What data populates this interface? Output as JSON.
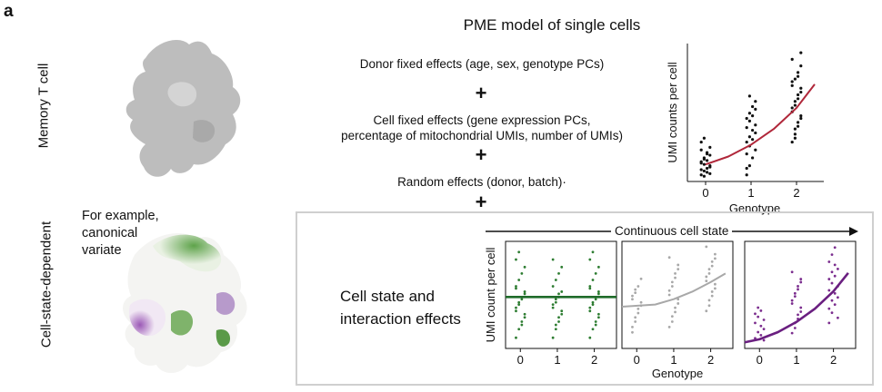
{
  "panel_letter": "a",
  "title": "PME model of single cells",
  "labels": {
    "memory_t_cell": "Memory T cell",
    "cell_state_dependent": "Cell-state-dependent",
    "example_line1": "For example,",
    "example_line2": "canonical",
    "example_line3": "variate"
  },
  "effects": {
    "donor": "Donor fixed effects (age, sex, genotype PCs)",
    "cell_line1": "Cell fixed effects (gene expression PCs,",
    "cell_line2": "percentage of mitochondrial UMIs, number of UMIs)",
    "random": "Random effects (donor, batch)·",
    "plus": "+"
  },
  "continuous_label": "Continuous cell state",
  "interaction_line1": "Cell state and",
  "interaction_line2": "interaction effects",
  "colors": {
    "umap_gray": "#bdbdbd",
    "green": "#2e7d32",
    "purple": "#7b2d8e",
    "red_curve": "#b0273a",
    "gray_points": "#b0b0b0",
    "box_border": "#cfcfcf"
  },
  "chart_data": [
    {
      "type": "scatter",
      "ylabel": "UMI counts per cell",
      "xlabel": "Genotype",
      "x_ticks": [
        "0",
        "1",
        "2"
      ],
      "point_color": "#111111",
      "curve_color": "#b0273a",
      "groups": [
        {
          "x": 0,
          "y": [
            0.5,
            0.8,
            1.0,
            1.2,
            1.5,
            1.8,
            2.2,
            0.6,
            0.9,
            1.3,
            1.6,
            2.0,
            2.4,
            0.4,
            0.7,
            1.1,
            1.4,
            1.7,
            2.1,
            2.6,
            3.0,
            3.3
          ]
        },
        {
          "x": 1,
          "y": [
            0.5,
            1.2,
            1.8,
            2.4,
            3.0,
            3.4,
            3.9,
            4.3,
            4.8,
            5.2,
            5.7,
            6.1,
            2.1,
            2.7,
            3.2,
            3.7,
            4.1,
            4.6,
            5.0,
            5.5,
            1.0,
            6.5
          ]
        },
        {
          "x": 2,
          "y": [
            3.0,
            3.6,
            4.2,
            4.8,
            5.3,
            5.8,
            6.3,
            6.8,
            7.3,
            7.8,
            8.3,
            8.8,
            9.3,
            4.0,
            4.5,
            5.0,
            5.6,
            6.1,
            6.6,
            7.1,
            7.6,
            3.3,
            8.0,
            9.8
          ]
        }
      ],
      "curve": {
        "x": [
          0,
          0.5,
          1,
          1.5,
          2,
          2.4
        ],
        "y": [
          1.3,
          1.9,
          2.8,
          4.0,
          5.6,
          7.4
        ]
      },
      "ylim": [
        0,
        10.5
      ],
      "xlim": [
        -0.4,
        2.6
      ]
    },
    {
      "type": "scatter",
      "ylabel": "UMI count per cell",
      "x_ticks": [
        "0",
        "1",
        "2"
      ],
      "point_color": "#2e7d32",
      "curve_color": "#1f6b2a",
      "groups": [
        {
          "x": 0,
          "y": [
            1.0,
            1.8,
            2.5,
            3.2,
            3.8,
            4.3,
            4.8,
            5.3,
            5.8,
            6.4,
            7.0,
            7.6,
            8.3,
            9.0,
            2.2,
            2.9,
            3.5,
            4.1,
            4.6,
            5.1,
            5.6
          ]
        },
        {
          "x": 1,
          "y": [
            1.0,
            1.8,
            2.5,
            3.2,
            3.8,
            4.3,
            4.8,
            5.3,
            5.8,
            6.4,
            7.0,
            7.6,
            8.3,
            2.2,
            2.9,
            3.5,
            4.1,
            4.6,
            5.1
          ]
        },
        {
          "x": 2,
          "y": [
            1.0,
            1.8,
            2.5,
            3.2,
            3.8,
            4.3,
            4.8,
            5.3,
            5.8,
            6.4,
            7.0,
            7.6,
            8.3,
            9.0,
            2.2,
            2.9,
            3.5,
            4.1,
            4.6,
            5.1,
            5.6
          ]
        }
      ],
      "curve": {
        "x": [
          -0.4,
          2.6
        ],
        "y": [
          4.8,
          4.8
        ]
      },
      "ylim": [
        0,
        10
      ],
      "xlim": [
        -0.4,
        2.6
      ]
    },
    {
      "type": "scatter",
      "x_ticks": [
        "0",
        "1",
        "2"
      ],
      "xlabel": "Genotype",
      "point_color": "#a8a8a8",
      "curve_color": "#a8a8a8",
      "groups": [
        {
          "x": 0,
          "y": [
            1.5,
            2.5,
            3.3,
            4.0,
            4.6,
            5.2,
            5.8,
            6.5,
            2.0,
            2.9,
            3.7,
            4.3,
            4.9,
            5.5
          ]
        },
        {
          "x": 1,
          "y": [
            2.0,
            3.0,
            3.8,
            4.6,
            5.4,
            6.2,
            7.0,
            7.8,
            8.5,
            2.5,
            3.4,
            4.2,
            5.0,
            5.8,
            6.6,
            7.4
          ]
        },
        {
          "x": 2,
          "y": [
            3.5,
            4.5,
            5.3,
            6.0,
            6.7,
            7.4,
            8.1,
            8.8,
            9.5,
            4.0,
            4.9,
            5.6,
            6.3,
            7.0,
            7.7,
            8.4
          ]
        }
      ],
      "curve": {
        "x": [
          -0.4,
          0.5,
          1,
          1.5,
          2,
          2.4
        ],
        "y": [
          3.9,
          4.1,
          4.6,
          5.3,
          6.2,
          7.0
        ]
      },
      "ylim": [
        0,
        10
      ],
      "xlim": [
        -0.4,
        2.6
      ]
    },
    {
      "type": "scatter",
      "x_ticks": [
        "0",
        "1",
        "2"
      ],
      "point_color": "#7b2d8e",
      "curve_color": "#6a1f80",
      "groups": [
        {
          "x": 0,
          "y": [
            1.0,
            1.6,
            2.2,
            2.8,
            3.4,
            4.0,
            1.3,
            1.9,
            2.5,
            3.1,
            3.7,
            0.8
          ]
        },
        {
          "x": 1,
          "y": [
            1.5,
            2.5,
            3.3,
            4.0,
            4.7,
            5.4,
            6.1,
            6.8,
            7.5,
            2.0,
            2.9,
            3.6,
            4.4,
            5.1,
            5.8,
            6.5
          ]
        },
        {
          "x": 2,
          "y": [
            2.5,
            3.5,
            4.3,
            5.0,
            5.7,
            6.4,
            7.1,
            7.8,
            8.5,
            9.2,
            9.9,
            3.0,
            3.9,
            4.7,
            5.4,
            6.1,
            6.8,
            7.5,
            8.2
          ]
        }
      ],
      "curve": {
        "x": [
          -0.4,
          0,
          0.5,
          1,
          1.5,
          2,
          2.4
        ],
        "y": [
          0.6,
          0.9,
          1.6,
          2.6,
          3.9,
          5.6,
          7.4
        ]
      },
      "ylim": [
        0,
        10.5
      ],
      "xlim": [
        -0.4,
        2.6
      ]
    }
  ]
}
